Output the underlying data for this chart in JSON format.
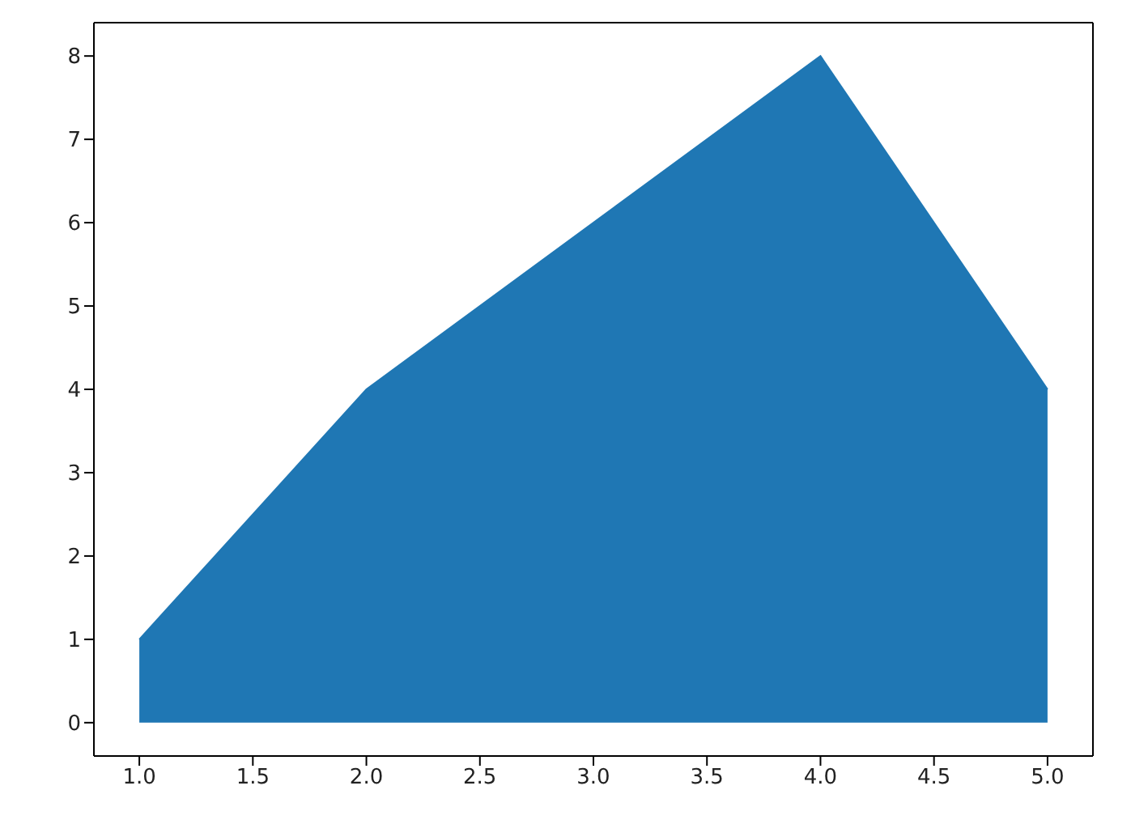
{
  "chart_data": {
    "type": "area",
    "x": [
      1,
      2,
      3,
      4,
      5
    ],
    "series": [
      {
        "color": "#1f77b4",
        "values": [
          1,
          4,
          6,
          8,
          4
        ]
      }
    ],
    "xlim": [
      0.8,
      5.2
    ],
    "xticks": [
      {
        "value": 1,
        "label": "1.0"
      },
      {
        "value": 1.5,
        "label": "1.5"
      },
      {
        "value": 2,
        "label": "2.0"
      },
      {
        "value": 2.5,
        "label": "2.5"
      },
      {
        "value": 3,
        "label": "3.0"
      },
      {
        "value": 3.5,
        "label": "3.5"
      },
      {
        "value": 4,
        "label": "4.0"
      },
      {
        "value": 4.5,
        "label": "4.5"
      },
      {
        "value": 5,
        "label": "5.0"
      }
    ],
    "ylim": [
      -0.4,
      8.4
    ],
    "yticks": [
      0,
      1,
      2,
      3,
      4,
      5,
      6,
      7,
      8
    ]
  }
}
